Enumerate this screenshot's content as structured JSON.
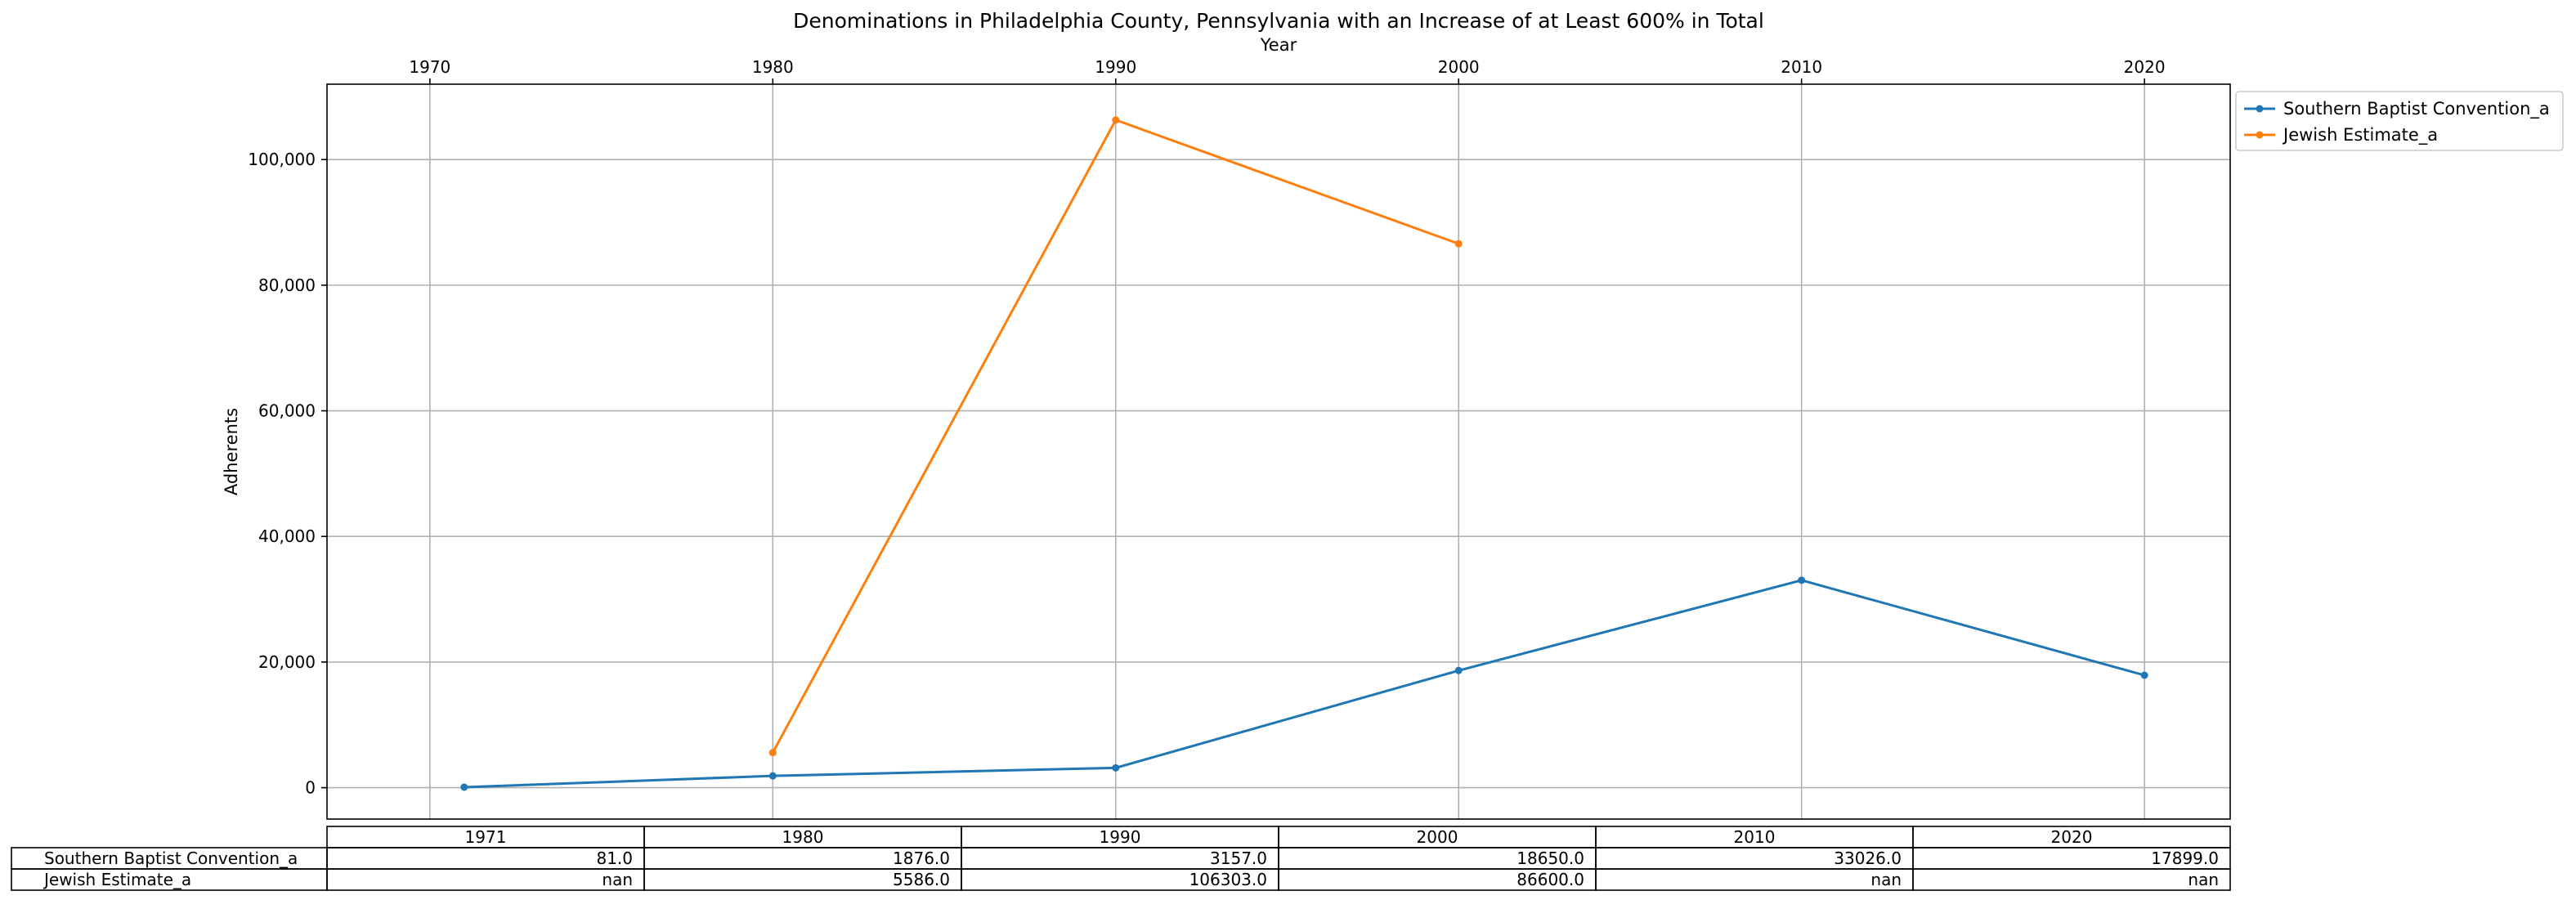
{
  "chart_data": {
    "type": "line",
    "title": "Denominations in Philadelphia County, Pennsylvania with an Increase of at Least 600% in Total",
    "xlabel": "Year",
    "ylabel": "Adherents",
    "x": [
      1971,
      1980,
      1990,
      2000,
      2010,
      2020
    ],
    "x_ticks": [
      1970,
      1980,
      1990,
      2000,
      2010,
      2020
    ],
    "xlim": [
      1967.0,
      2022.5
    ],
    "y_ticks": [
      0,
      20000,
      40000,
      60000,
      80000,
      100000
    ],
    "y_tick_labels": [
      "0",
      "20,000",
      "40,000",
      "60,000",
      "80,000",
      "100,000"
    ],
    "ylim": [
      -5000,
      112000
    ],
    "grid": true,
    "x_axis_position": "top",
    "legend_position": "outside top-right",
    "series": [
      {
        "name": "Southern Baptist Convention_a",
        "color": "#1f77b4",
        "values": [
          81,
          1876,
          3157,
          18650,
          33026,
          17899
        ]
      },
      {
        "name": "Jewish Estimate_a",
        "color": "#ff7f0e",
        "values": [
          null,
          5586,
          106303,
          86600,
          null,
          null
        ]
      }
    ],
    "table": {
      "columns": [
        "1971",
        "1980",
        "1990",
        "2000",
        "2010",
        "2020"
      ],
      "rows": [
        {
          "label": "Southern Baptist Convention_a",
          "cells": [
            "81.0",
            "1876.0",
            "3157.0",
            "18650.0",
            "33026.0",
            "17899.0"
          ]
        },
        {
          "label": "Jewish Estimate_a",
          "cells": [
            "nan",
            "5586.0",
            "106303.0",
            "86600.0",
            "nan",
            "nan"
          ]
        }
      ]
    }
  }
}
